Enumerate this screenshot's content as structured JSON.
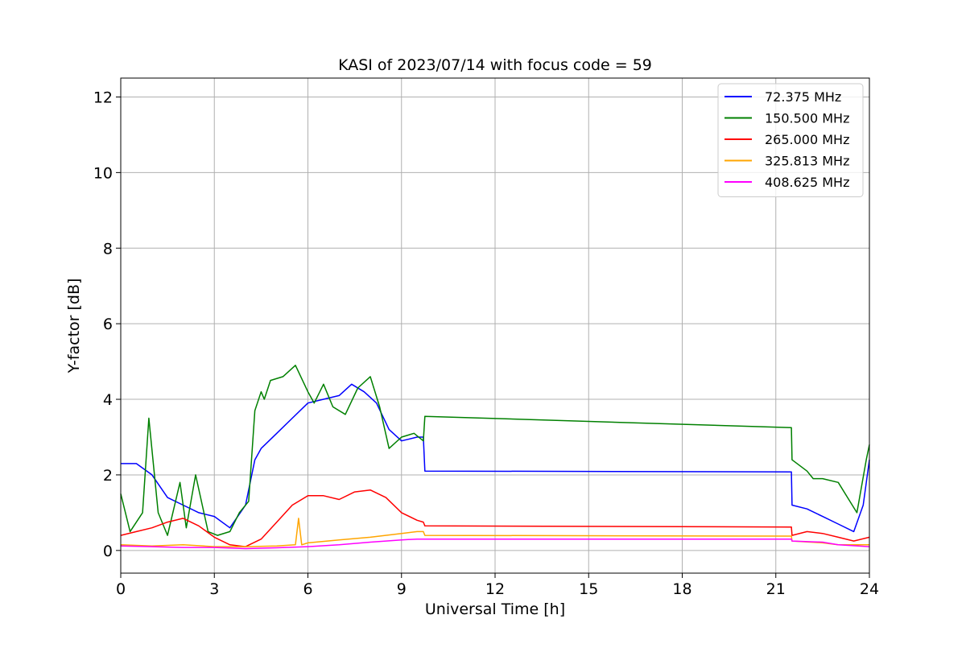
{
  "chart_data": {
    "type": "line",
    "title": "KASI of 2023/07/14 with focus code = 59",
    "xlabel": "Universal Time [h]",
    "ylabel": "Y-factor [dB]",
    "xlim": [
      0,
      24
    ],
    "ylim": [
      -0.6,
      12.5
    ],
    "xticks": [
      0,
      3,
      6,
      9,
      12,
      15,
      18,
      21,
      24
    ],
    "yticks": [
      0,
      2,
      4,
      6,
      8,
      10,
      12
    ],
    "grid": true,
    "legend_position": "top-right",
    "series": [
      {
        "name": " 72.375 MHz",
        "color": "#0000ff",
        "x": [
          0,
          0.5,
          1,
          1.5,
          2,
          2.5,
          3,
          3.5,
          4,
          4.3,
          4.5,
          5,
          5.5,
          6,
          6.5,
          7,
          7.4,
          7.8,
          8.2,
          8.6,
          9,
          9.5,
          9.7,
          9.75,
          21.5,
          21.52,
          22,
          22.5,
          23,
          23.5,
          23.8,
          24
        ],
        "y": [
          2.3,
          2.3,
          2.0,
          1.4,
          1.2,
          1.0,
          0.9,
          0.6,
          1.2,
          2.4,
          2.7,
          3.1,
          3.5,
          3.9,
          4.0,
          4.1,
          4.4,
          4.2,
          3.9,
          3.2,
          2.9,
          3.0,
          3.0,
          2.1,
          2.08,
          1.2,
          1.1,
          0.9,
          0.7,
          0.5,
          1.2,
          2.4
        ]
      },
      {
        "name": "150.500 MHz",
        "color": "#008000",
        "x": [
          0,
          0.3,
          0.7,
          0.9,
          1.2,
          1.5,
          1.9,
          2.1,
          2.4,
          2.8,
          3.1,
          3.5,
          3.8,
          4.1,
          4.3,
          4.5,
          4.6,
          4.8,
          5.2,
          5.6,
          6,
          6.2,
          6.5,
          6.8,
          7.2,
          7.6,
          8,
          8.3,
          8.6,
          9,
          9.4,
          9.7,
          9.75,
          21.5,
          21.52,
          22,
          22.2,
          22.5,
          23,
          23.3,
          23.6,
          23.9,
          24
        ],
        "y": [
          1.5,
          0.5,
          1.0,
          3.5,
          1.0,
          0.4,
          1.8,
          0.6,
          2.0,
          0.5,
          0.4,
          0.5,
          1.0,
          1.3,
          3.7,
          4.2,
          4.0,
          4.5,
          4.6,
          4.9,
          4.2,
          3.9,
          4.4,
          3.8,
          3.6,
          4.3,
          4.6,
          3.8,
          2.7,
          3.0,
          3.1,
          2.9,
          3.55,
          3.25,
          2.4,
          2.1,
          1.9,
          1.9,
          1.8,
          1.4,
          1.0,
          2.4,
          2.8
        ]
      },
      {
        "name": "265.000 MHz",
        "color": "#ff0000",
        "x": [
          0,
          0.5,
          1,
          1.5,
          2,
          2.5,
          3,
          3.5,
          4,
          4.5,
          5,
          5.5,
          6,
          6.5,
          7,
          7.5,
          8,
          8.5,
          9,
          9.5,
          9.7,
          9.75,
          21.5,
          21.52,
          22,
          22.5,
          23,
          23.5,
          24
        ],
        "y": [
          0.4,
          0.5,
          0.6,
          0.75,
          0.85,
          0.65,
          0.35,
          0.15,
          0.1,
          0.3,
          0.75,
          1.2,
          1.45,
          1.45,
          1.35,
          1.55,
          1.6,
          1.4,
          1.0,
          0.8,
          0.75,
          0.65,
          0.62,
          0.4,
          0.5,
          0.45,
          0.35,
          0.25,
          0.35
        ]
      },
      {
        "name": "325.813 MHz",
        "color": "#ffa500",
        "x": [
          0,
          1,
          2,
          3,
          4,
          5,
          5.6,
          5.7,
          5.8,
          6,
          7,
          8,
          9,
          9.5,
          9.7,
          9.75,
          21.5,
          21.52,
          22.5,
          23,
          24
        ],
        "y": [
          0.15,
          0.12,
          0.15,
          0.1,
          0.1,
          0.12,
          0.15,
          0.85,
          0.15,
          0.2,
          0.28,
          0.35,
          0.45,
          0.5,
          0.5,
          0.4,
          0.38,
          0.25,
          0.2,
          0.15,
          0.15
        ]
      },
      {
        "name": "408.625 MHz",
        "color": "#ff00ff",
        "x": [
          0,
          1,
          2,
          3,
          4,
          5,
          6,
          7,
          8,
          9,
          9.5,
          9.7,
          9.75,
          21.5,
          21.52,
          22.5,
          23,
          24
        ],
        "y": [
          0.12,
          0.1,
          0.08,
          0.08,
          0.05,
          0.07,
          0.1,
          0.15,
          0.22,
          0.28,
          0.3,
          0.3,
          0.3,
          0.3,
          0.25,
          0.22,
          0.15,
          0.1
        ]
      }
    ]
  }
}
